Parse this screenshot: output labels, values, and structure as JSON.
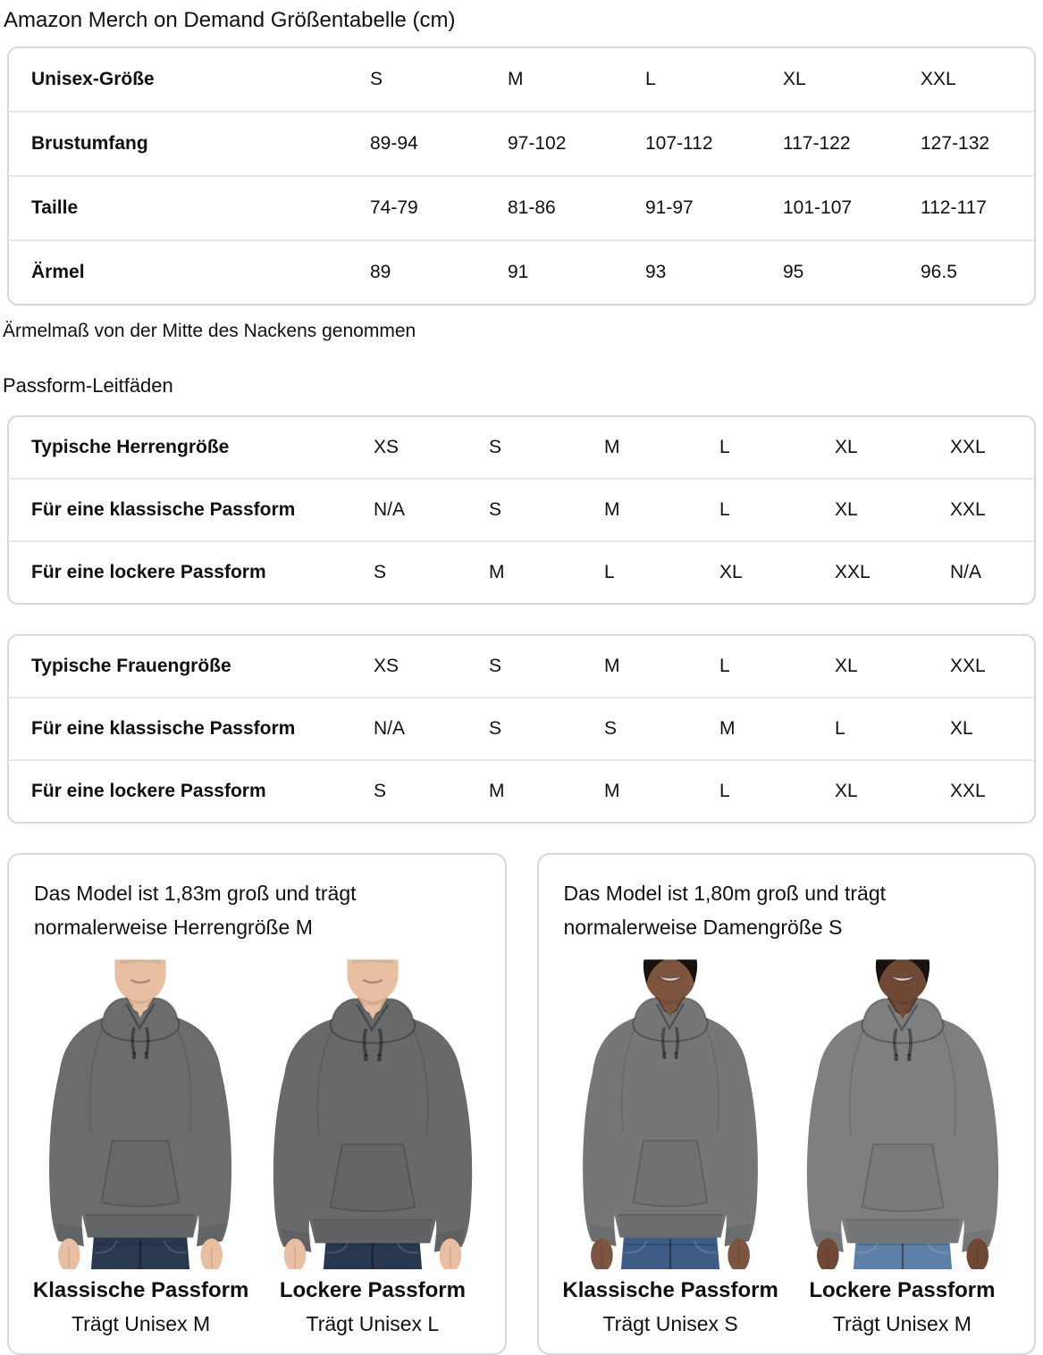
{
  "title": "Amazon Merch on Demand Größentabelle (cm)",
  "size_table": {
    "rows": [
      {
        "label": "Unisex-Größe",
        "c0": "S",
        "c1": "M",
        "c2": "L",
        "c3": "XL",
        "c4": "XXL"
      },
      {
        "label": "Brustumfang",
        "c0": "89-94",
        "c1": "97-102",
        "c2": "107-112",
        "c3": "117-122",
        "c4": "127-132"
      },
      {
        "label": "Taille",
        "c0": "74-79",
        "c1": "81-86",
        "c2": "91-97",
        "c3": "101-107",
        "c4": "112-117"
      },
      {
        "label": "Ärmel",
        "c0": "89",
        "c1": "91",
        "c2": "93",
        "c3": "95",
        "c4": "96.5"
      }
    ]
  },
  "sleeve_note": "Ärmelmaß von der Mitte des Nackens genommen",
  "fit_guides_heading": "Passform-Leitfäden",
  "mens_fit_table": {
    "rows": [
      {
        "label": "Typische Herrengröße",
        "c0": "XS",
        "c1": "S",
        "c2": "M",
        "c3": "L",
        "c4": "XL",
        "c5": "XXL"
      },
      {
        "label": "Für eine klassische Passform",
        "c0": "N/A",
        "c1": "S",
        "c2": "M",
        "c3": "L",
        "c4": "XL",
        "c5": "XXL"
      },
      {
        "label": "Für eine lockere Passform",
        "c0": "S",
        "c1": "M",
        "c2": "L",
        "c3": "XL",
        "c4": "XXL",
        "c5": "N/A"
      }
    ]
  },
  "womens_fit_table": {
    "rows": [
      {
        "label": "Typische Frauengröße",
        "c0": "XS",
        "c1": "S",
        "c2": "M",
        "c3": "L",
        "c4": "XL",
        "c5": "XXL"
      },
      {
        "label": "Für eine klassische Passform",
        "c0": "N/A",
        "c1": "S",
        "c2": "S",
        "c3": "M",
        "c4": "L",
        "c5": "XL"
      },
      {
        "label": "Für eine lockere Passform",
        "c0": "S",
        "c1": "M",
        "c2": "M",
        "c3": "L",
        "c4": "XL",
        "c5": "XXL"
      }
    ]
  },
  "colors": {
    "text": "#0f1111",
    "card_border": "#d5d9d9",
    "row_divider": "#e4e7e7"
  },
  "model_cards": [
    {
      "description": "Das Model ist 1,83m groß und trägt normalerweise Herrengröße M",
      "figures": [
        {
          "fit_label": "Klassische Passform",
          "size_label": "Trägt Unisex M",
          "skin": "#e8bfa2",
          "hoodie": "#6b6c6e",
          "jeans": "#2b3950",
          "hair": "",
          "female": false,
          "loose": false
        },
        {
          "fit_label": "Lockere Passform",
          "size_label": "Trägt Unisex L",
          "skin": "#e8bfa2",
          "hoodie": "#68696b",
          "jeans": "#293750",
          "hair": "",
          "female": false,
          "loose": true
        }
      ]
    },
    {
      "description": "Das Model ist 1,80m groß und trägt normalerweise Damengröße S",
      "figures": [
        {
          "fit_label": "Klassische Passform",
          "size_label": "Trägt Unisex S",
          "skin": "#7c5440",
          "hoodie": "#757678",
          "jeans": "#3f5c85",
          "hair": "#171210",
          "female": true,
          "loose": false
        },
        {
          "fit_label": "Lockere Passform",
          "size_label": "Trägt Unisex M",
          "skin": "#6f4936",
          "hoodie": "#7e7f81",
          "jeans": "#5e80a8",
          "hair": "#171210",
          "female": true,
          "loose": true
        }
      ]
    }
  ]
}
